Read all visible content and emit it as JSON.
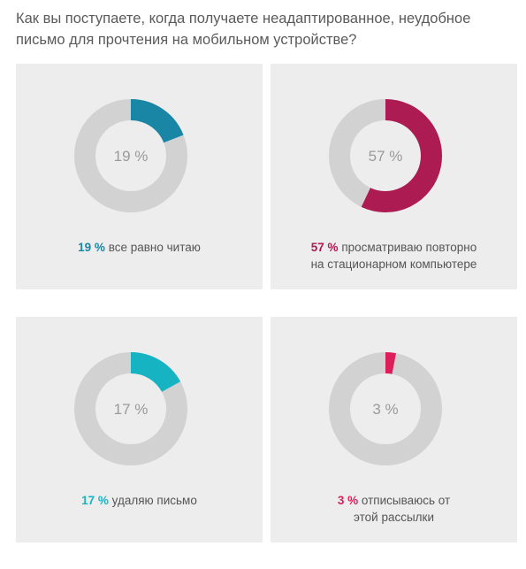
{
  "title": "Как вы поступаете, когда получаете неадаптированное, неудобное письмо для прочтения на мобильном устройстве?",
  "chart_data": [
    {
      "type": "pie",
      "style": "donut",
      "value": 19,
      "center_label": "19 %",
      "percent_label": "19 %",
      "text_lines": [
        "все равно читаю"
      ],
      "color": "#1a86a6",
      "remainder_color": "#d2d2d2"
    },
    {
      "type": "pie",
      "style": "donut",
      "value": 57,
      "center_label": "57 %",
      "percent_label": "57 %",
      "text_lines": [
        "просматриваю повторно",
        "на стационарном компьютере"
      ],
      "color": "#ac1b52",
      "remainder_color": "#d2d2d2"
    },
    {
      "type": "pie",
      "style": "donut",
      "value": 17,
      "center_label": "17 %",
      "percent_label": "17 %",
      "text_lines": [
        "удаляю письмо"
      ],
      "color": "#16b3c2",
      "remainder_color": "#d2d2d2"
    },
    {
      "type": "pie",
      "style": "donut",
      "value": 3,
      "center_label": "3 %",
      "percent_label": "3 %",
      "text_lines": [
        "отписываюсь от",
        "этой рассылки"
      ],
      "color": "#dc1e5a",
      "remainder_color": "#d2d2d2"
    }
  ]
}
